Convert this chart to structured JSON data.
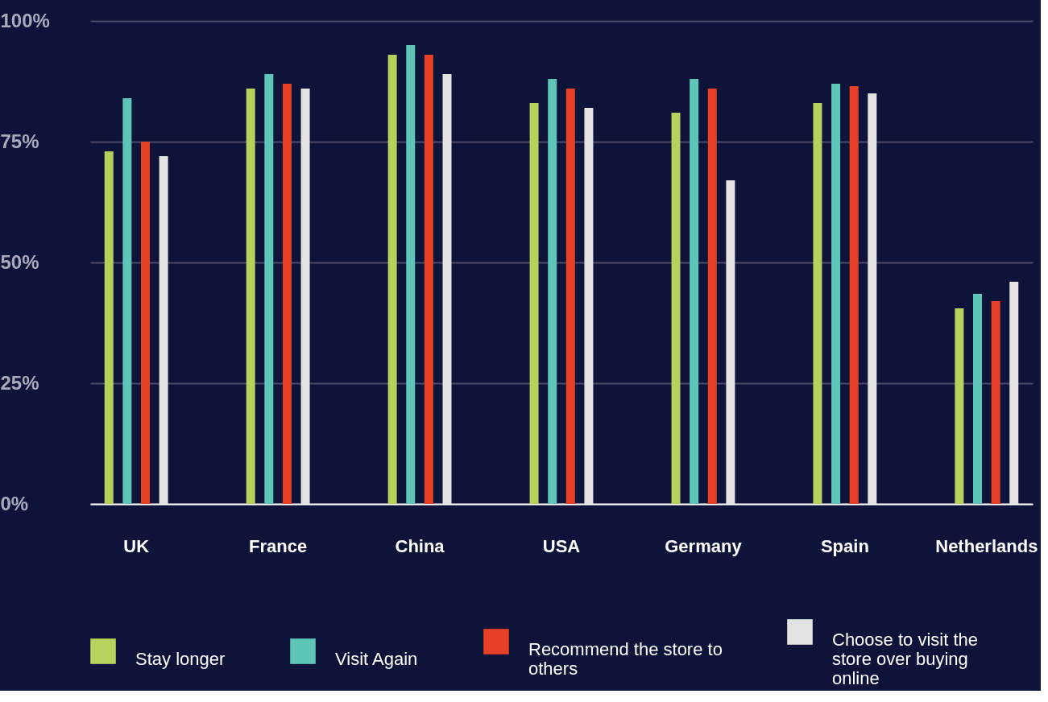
{
  "chart_data": {
    "type": "bar",
    "categories": [
      "UK",
      "France",
      "China",
      "USA",
      "Germany",
      "Spain",
      "Netherlands"
    ],
    "series": [
      {
        "name": "Stay longer",
        "color": "#b3d35c",
        "values": [
          73,
          86,
          93,
          83,
          81,
          83,
          40.5
        ]
      },
      {
        "name": "Visit Again",
        "color": "#5ec5b9",
        "values": [
          84,
          89,
          95,
          88,
          88,
          87,
          43.5
        ]
      },
      {
        "name": "Recommend the store to others",
        "color": "#e64126",
        "values": [
          75,
          87,
          93,
          86,
          86,
          86.5,
          42
        ]
      },
      {
        "name": "Choose to visit the store over buying online",
        "color": "#e3e3e3",
        "values": [
          72,
          86,
          89,
          82,
          67,
          85,
          46
        ]
      }
    ],
    "ylim": [
      0,
      100
    ],
    "yticks": [
      {
        "value": 0,
        "label": "0%"
      },
      {
        "value": 25,
        "label": "25%"
      },
      {
        "value": 50,
        "label": "50%"
      },
      {
        "value": 75,
        "label": "75%"
      },
      {
        "value": 100,
        "label": "100%"
      }
    ],
    "grid": "y",
    "legend": "bottom"
  }
}
